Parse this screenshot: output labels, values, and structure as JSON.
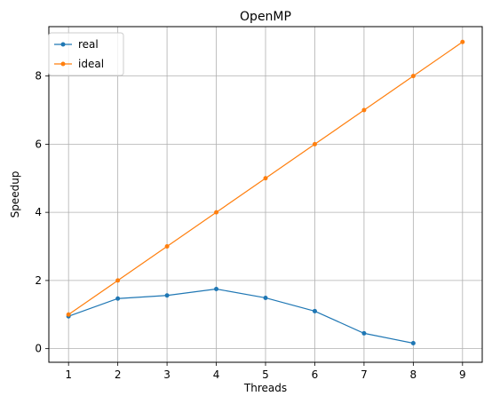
{
  "chart_data": {
    "type": "line",
    "title": "OpenMP",
    "xlabel": "Threads",
    "ylabel": "Speedup",
    "xlim": [
      0.6,
      9.4
    ],
    "ylim": [
      -0.4,
      9.45
    ],
    "xticks": [
      1,
      2,
      3,
      4,
      5,
      6,
      7,
      8,
      9
    ],
    "yticks": [
      0,
      2,
      4,
      6,
      8
    ],
    "grid": true,
    "legend_position": "top-left",
    "series": [
      {
        "name": "real",
        "color": "#1f77b4",
        "x": [
          1,
          2,
          3,
          4,
          5,
          6,
          7,
          8
        ],
        "y": [
          0.95,
          1.47,
          1.56,
          1.75,
          1.49,
          1.1,
          0.45,
          0.16
        ]
      },
      {
        "name": "ideal",
        "color": "#ff7f0e",
        "x": [
          1,
          2,
          3,
          4,
          5,
          6,
          7,
          8,
          9
        ],
        "y": [
          1,
          2,
          3,
          4,
          5,
          6,
          7,
          8,
          9
        ]
      }
    ]
  }
}
